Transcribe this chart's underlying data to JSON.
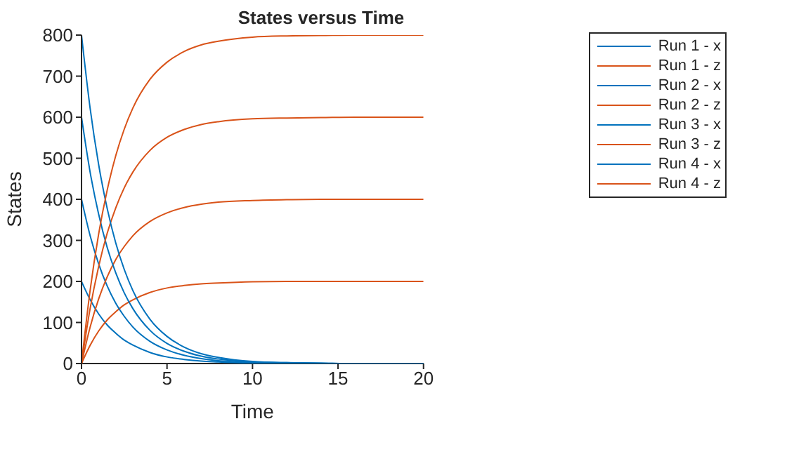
{
  "chart_data": {
    "type": "line",
    "title": "States versus Time",
    "xlabel": "Time",
    "ylabel": "States",
    "x": [
      0,
      0.5,
      1,
      1.5,
      2,
      2.5,
      3,
      4,
      5,
      6,
      7,
      8,
      10,
      12,
      14,
      16,
      18,
      20
    ],
    "series": [
      {
        "name": "Run 1 - x",
        "color": "#0072bd",
        "values": [
          200,
          156,
          121,
          94,
          74,
          57,
          45,
          27,
          16,
          10,
          6,
          4,
          1,
          0,
          0,
          0,
          0,
          0
        ]
      },
      {
        "name": "Run 1 - z",
        "color": "#d95319",
        "values": [
          0,
          44,
          79,
          106,
          126,
          143,
          155,
          173,
          184,
          190,
          194,
          196,
          199,
          200,
          200,
          200,
          200,
          200
        ]
      },
      {
        "name": "Run 2 - x",
        "color": "#0072bd",
        "values": [
          400,
          312,
          243,
          189,
          147,
          115,
          89,
          54,
          33,
          20,
          12,
          7,
          3,
          1,
          0,
          0,
          0,
          0
        ]
      },
      {
        "name": "Run 2 - z",
        "color": "#d95319",
        "values": [
          0,
          88,
          157,
          211,
          253,
          285,
          311,
          346,
          367,
          380,
          388,
          393,
          397,
          399,
          400,
          400,
          400,
          400
        ]
      },
      {
        "name": "Run 3 - x",
        "color": "#0072bd",
        "values": [
          600,
          467,
          364,
          283,
          221,
          172,
          134,
          81,
          49,
          30,
          18,
          11,
          4,
          2,
          1,
          0,
          0,
          0
        ]
      },
      {
        "name": "Run 3 - z",
        "color": "#d95319",
        "values": [
          0,
          133,
          236,
          317,
          379,
          428,
          466,
          519,
          551,
          570,
          582,
          589,
          596,
          598,
          599,
          600,
          600,
          600
        ]
      },
      {
        "name": "Run 4 - x",
        "color": "#0072bd",
        "values": [
          800,
          623,
          485,
          378,
          294,
          229,
          178,
          108,
          66,
          40,
          24,
          15,
          5,
          2,
          1,
          0,
          0,
          0
        ]
      },
      {
        "name": "Run 4 - z",
        "color": "#d95319",
        "values": [
          0,
          177,
          315,
          422,
          506,
          571,
          622,
          692,
          734,
          760,
          776,
          785,
          795,
          798,
          799,
          800,
          800,
          800
        ]
      }
    ],
    "xlim": [
      0,
      20
    ],
    "xticks": [
      0,
      5,
      10,
      15,
      20
    ],
    "ylim": [
      0,
      800
    ],
    "yticks": [
      0,
      100,
      200,
      300,
      400,
      500,
      600,
      700,
      800
    ],
    "grid": false,
    "legend": "top right",
    "marker": "none",
    "line_style": "solid"
  }
}
